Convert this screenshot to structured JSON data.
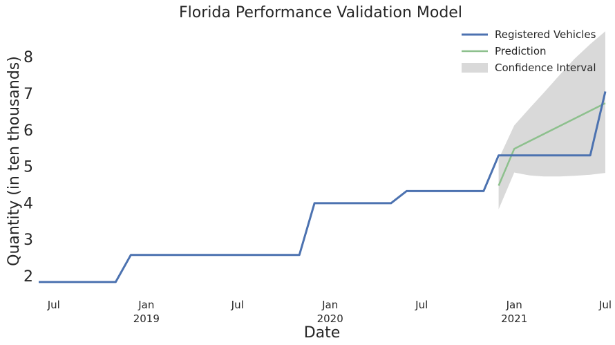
{
  "chart_data": {
    "type": "line",
    "title": "Florida Performance Validation Model",
    "xlabel": "Date",
    "ylabel": "Quantity (in ten thousands)",
    "xlim": [
      "2018-06-01",
      "2021-07-01"
    ],
    "ylim": [
      1.6,
      8.8
    ],
    "grid": false,
    "legend_position": "top-right",
    "yticks": [
      2,
      3,
      4,
      5,
      6,
      7,
      8
    ],
    "xticks": [
      {
        "date": "2018-07-01",
        "label": "Jul",
        "year": ""
      },
      {
        "date": "2019-01-01",
        "label": "Jan",
        "year": "2019"
      },
      {
        "date": "2019-07-01",
        "label": "Jul",
        "year": ""
      },
      {
        "date": "2020-01-01",
        "label": "Jan",
        "year": "2020"
      },
      {
        "date": "2020-07-01",
        "label": "Jul",
        "year": ""
      },
      {
        "date": "2021-01-01",
        "label": "Jan",
        "year": "2021"
      },
      {
        "date": "2021-07-01",
        "label": "Jul",
        "year": ""
      }
    ],
    "series": [
      {
        "name": "Registered Vehicles",
        "color": "#4c72b0",
        "points": [
          [
            "2018-06-01",
            1.83
          ],
          [
            "2018-11-01",
            1.83
          ],
          [
            "2018-12-01",
            2.57
          ],
          [
            "2019-11-01",
            2.57
          ],
          [
            "2019-12-01",
            3.99
          ],
          [
            "2020-05-01",
            3.99
          ],
          [
            "2020-06-01",
            4.32
          ],
          [
            "2020-11-01",
            4.32
          ],
          [
            "2020-12-01",
            5.3
          ],
          [
            "2021-06-01",
            5.3
          ],
          [
            "2021-07-01",
            7.05
          ]
        ]
      },
      {
        "name": "Prediction",
        "color": "#8dc08d",
        "points": [
          [
            "2020-12-01",
            4.47
          ],
          [
            "2021-01-01",
            5.48
          ],
          [
            "2021-07-01",
            6.73
          ]
        ]
      }
    ],
    "confidence_interval": {
      "name": "Confidence Interval",
      "color": "#d9d9d9",
      "upper": [
        [
          "2020-12-01",
          5.2
        ],
        [
          "2021-01-01",
          6.12
        ],
        [
          "2021-02-01",
          6.6
        ],
        [
          "2021-03-01",
          7.02
        ],
        [
          "2021-04-01",
          7.5
        ],
        [
          "2021-05-01",
          7.95
        ],
        [
          "2021-06-01",
          8.35
        ],
        [
          "2021-07-01",
          8.7
        ]
      ],
      "lower": [
        [
          "2020-12-01",
          3.82
        ],
        [
          "2021-01-01",
          4.83
        ],
        [
          "2021-02-01",
          4.75
        ],
        [
          "2021-03-01",
          4.72
        ],
        [
          "2021-04-01",
          4.72
        ],
        [
          "2021-05-01",
          4.74
        ],
        [
          "2021-06-01",
          4.77
        ],
        [
          "2021-07-01",
          4.82
        ]
      ]
    }
  }
}
